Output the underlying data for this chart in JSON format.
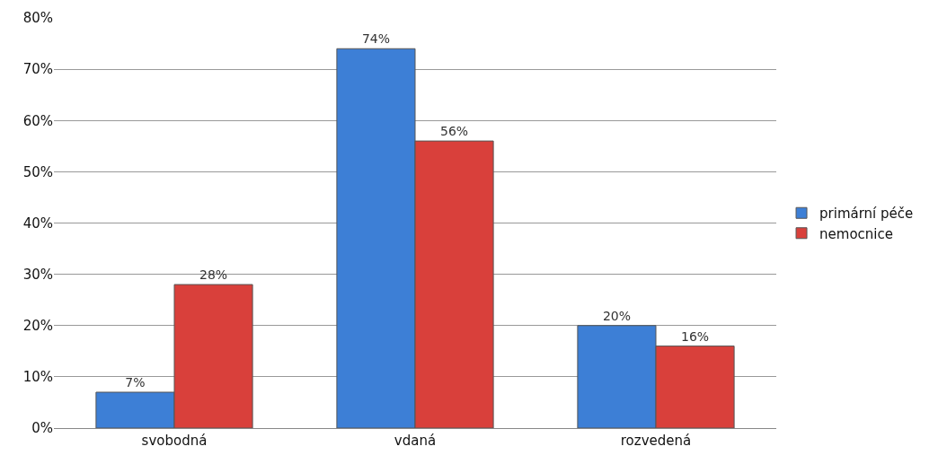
{
  "chart_data": {
    "type": "bar",
    "categories": [
      "svobodná",
      "vdaná",
      "rozvedená"
    ],
    "series": [
      {
        "name": "primární péče",
        "color": "#3d7fd6",
        "values": [
          7,
          74,
          20
        ],
        "value_labels": [
          "7%",
          "74%",
          "20%"
        ]
      },
      {
        "name": "nemocnice",
        "color": "#d9403b",
        "values": [
          28,
          56,
          16
        ],
        "value_labels": [
          "28%",
          "56%",
          "16%"
        ]
      }
    ],
    "ylim": [
      0,
      80
    ],
    "yticks": [
      {
        "value": 0,
        "label": "0%"
      },
      {
        "value": 10,
        "label": "10%"
      },
      {
        "value": 20,
        "label": "20%"
      },
      {
        "value": 30,
        "label": "30%"
      },
      {
        "value": 40,
        "label": "40%"
      },
      {
        "value": 50,
        "label": "50%"
      },
      {
        "value": 60,
        "label": "60%"
      },
      {
        "value": 70,
        "label": "70%"
      },
      {
        "value": 80,
        "label": "80%"
      }
    ],
    "grid": "y",
    "legend": "right"
  }
}
